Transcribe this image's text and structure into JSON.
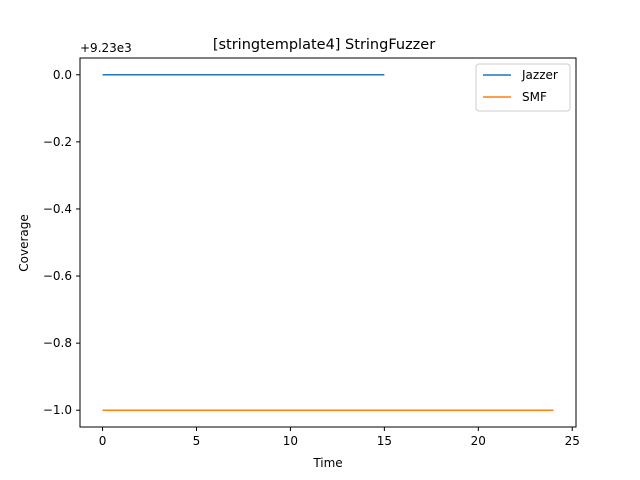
{
  "chart_data": {
    "type": "line",
    "title": "[stringtemplate4] StringFuzzer",
    "xlabel": "Time",
    "ylabel": "Coverage",
    "y_offset_label": "+9.23e3",
    "xlim": [
      -1.2,
      25.2
    ],
    "ylim": [
      -1.05,
      0.05
    ],
    "x_ticks": [
      0,
      5,
      10,
      15,
      20,
      25
    ],
    "x_tick_labels": [
      "0",
      "5",
      "10",
      "15",
      "20",
      "25"
    ],
    "y_ticks": [
      0.0,
      -0.2,
      -0.4,
      -0.6,
      -0.8,
      -1.0
    ],
    "y_tick_labels": [
      "0.0",
      "−0.2",
      "−0.4",
      "−0.6",
      "−0.8",
      "−1.0"
    ],
    "grid": false,
    "legend_position": "top-right",
    "series": [
      {
        "name": "Jazzer",
        "color": "#1f77b4",
        "x": [
          0,
          15
        ],
        "y": [
          0.0,
          0.0
        ]
      },
      {
        "name": "SMF",
        "color": "#ff7f0e",
        "x": [
          0,
          24
        ],
        "y": [
          -1.0,
          -1.0
        ]
      }
    ]
  }
}
